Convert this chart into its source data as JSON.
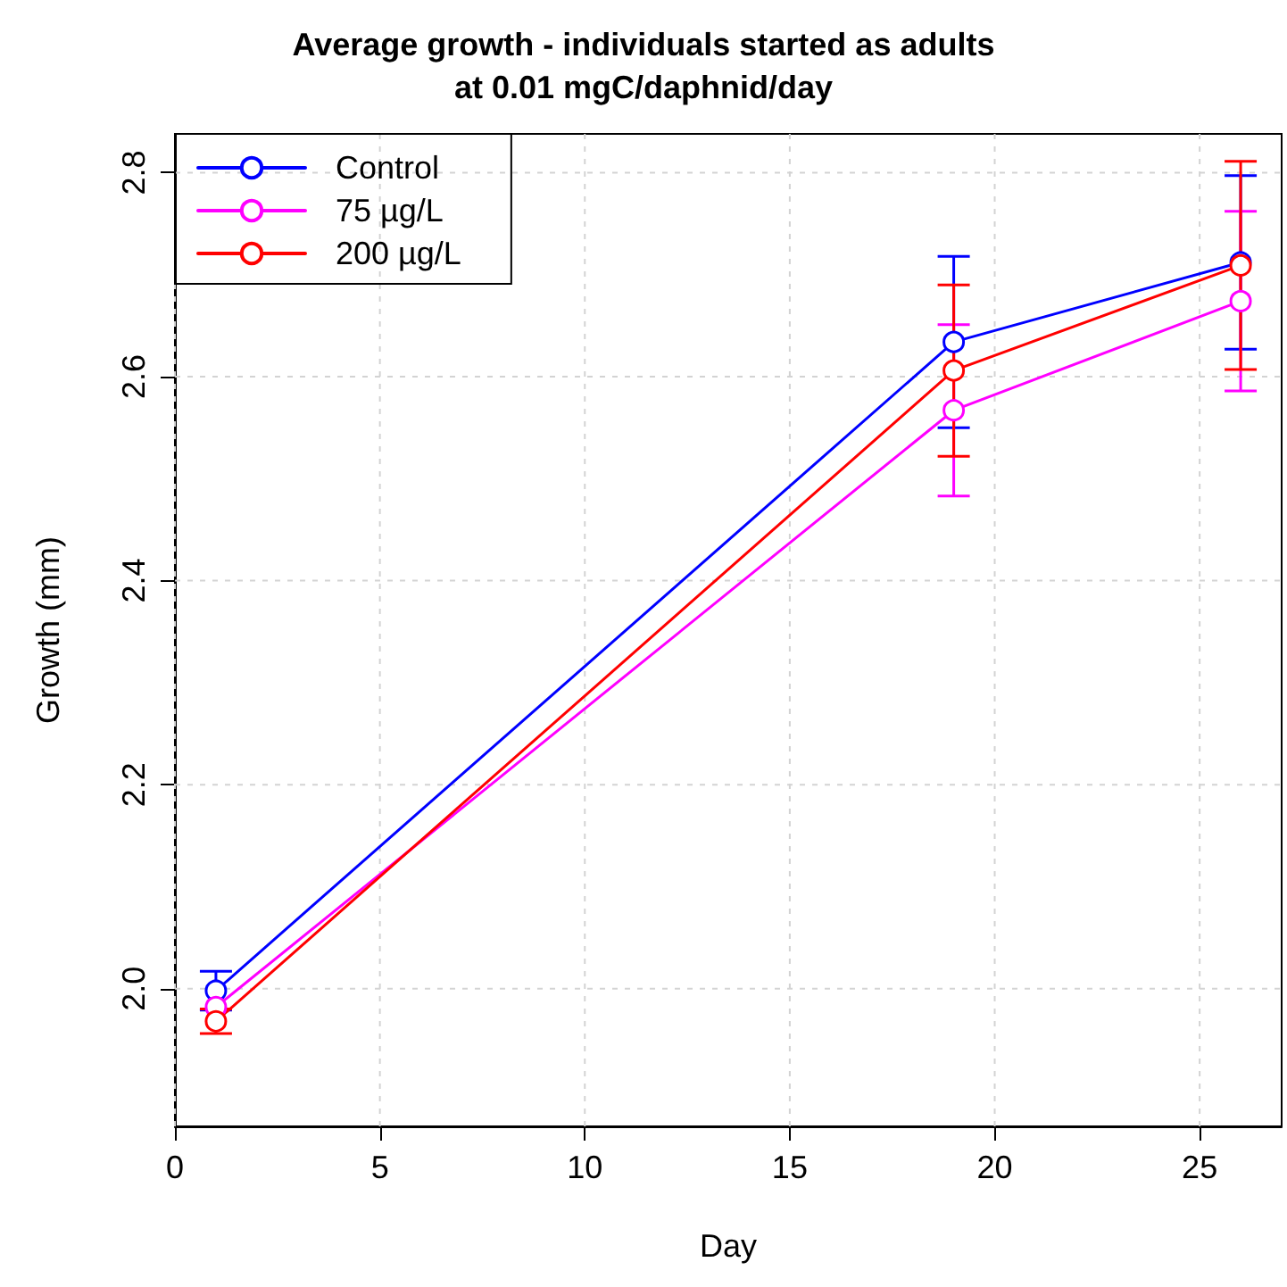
{
  "chart_data": {
    "type": "line",
    "title": "Average growth - individuals started as adults\nat 0.01 mgC/daphnid/day",
    "xlabel": "Day",
    "ylabel": "Growth (mm)",
    "x": [
      1,
      19,
      26
    ],
    "series": [
      {
        "name": "Control",
        "color": "#0000ff",
        "values": [
          1.998,
          2.634,
          2.712
        ],
        "errors": [
          0.019,
          0.084,
          0.085
        ]
      },
      {
        "name": "75 µg/L",
        "color": "#ff00ff",
        "values": [
          1.982,
          2.567,
          2.674
        ],
        "errors": [
          null,
          0.084,
          0.088
        ]
      },
      {
        "name": "200 µg/L",
        "color": "#ff0000",
        "values": [
          1.968,
          2.606,
          2.709
        ],
        "errors": [
          0.012,
          0.084,
          0.102
        ]
      }
    ],
    "xlim": [
      0,
      27
    ],
    "xticks": [
      0,
      5,
      10,
      15,
      20,
      25
    ],
    "ylim": [
      1.865,
      2.838
    ],
    "yticks": [
      {
        "value": 2.0,
        "label": "2.0"
      },
      {
        "value": 2.2,
        "label": "2.2"
      },
      {
        "value": 2.4,
        "label": "2.4"
      },
      {
        "value": 2.6,
        "label": "2.6"
      },
      {
        "value": 2.8,
        "label": "2.8"
      }
    ],
    "grid": true,
    "legend": "top left",
    "marker": "circle",
    "line_style": "solid"
  }
}
